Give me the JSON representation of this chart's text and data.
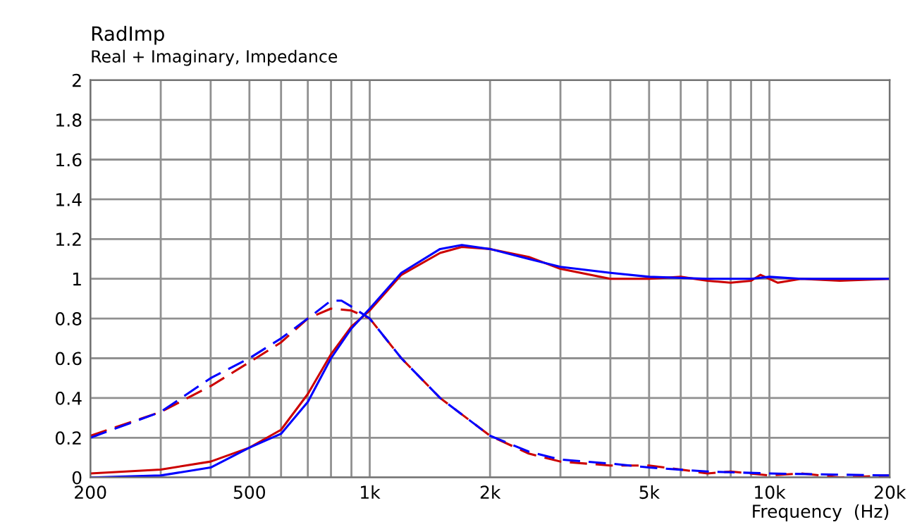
{
  "chart_data": {
    "type": "line",
    "title": "RadImp",
    "subtitle": "Real + Imaginary, Impedance",
    "xlabel": "Frequency  (Hz)",
    "log": "x",
    "grid": true,
    "marker": "none",
    "xlim": [
      200,
      20000
    ],
    "xticks": [
      200,
      500,
      {
        "value": 1000,
        "label": "1k"
      },
      {
        "value": 2000,
        "label": "2k"
      },
      {
        "value": 5000,
        "label": "5k"
      },
      {
        "value": 10000,
        "label": "10k"
      },
      {
        "value": 20000,
        "label": "20k"
      }
    ],
    "ylim": [
      0,
      2
    ],
    "yticks": [
      0,
      0.2,
      0.4,
      0.6,
      0.8,
      1,
      1.2,
      1.4,
      1.6,
      1.8,
      2
    ],
    "series": [
      {
        "color": "#cc0000",
        "line_style": "solid",
        "x": [
          200,
          300,
          400,
          500,
          600,
          700,
          800,
          900,
          1000,
          1200,
          1500,
          1700,
          2000,
          2500,
          3000,
          4000,
          5000,
          6000,
          7000,
          8000,
          9000,
          9500,
          10500,
          12000,
          15000,
          20000
        ],
        "values": [
          0.02,
          0.04,
          0.08,
          0.15,
          0.24,
          0.42,
          0.62,
          0.76,
          0.84,
          1.02,
          1.13,
          1.16,
          1.15,
          1.11,
          1.05,
          1.0,
          1.0,
          1.01,
          0.99,
          0.98,
          0.99,
          1.02,
          0.98,
          1.0,
          0.99,
          1.0
        ]
      },
      {
        "color": "#0000ff",
        "line_style": "solid",
        "x": [
          200,
          300,
          400,
          500,
          600,
          700,
          800,
          900,
          1000,
          1200,
          1500,
          1700,
          2000,
          2500,
          3000,
          4000,
          5000,
          7000,
          9000,
          10000,
          12000,
          20000
        ],
        "values": [
          0.0,
          0.01,
          0.05,
          0.15,
          0.22,
          0.38,
          0.6,
          0.75,
          0.85,
          1.03,
          1.15,
          1.17,
          1.15,
          1.1,
          1.06,
          1.03,
          1.01,
          1.0,
          1.0,
          1.01,
          1.0,
          1.0
        ]
      },
      {
        "color": "#cc0000",
        "line_style": "dashed",
        "x": [
          200,
          300,
          400,
          500,
          600,
          700,
          800,
          900,
          1000,
          1200,
          1500,
          2000,
          2500,
          3000,
          4000,
          5000,
          6000,
          7000,
          8000,
          10000,
          12000,
          15000,
          20000
        ],
        "values": [
          0.21,
          0.33,
          0.46,
          0.58,
          0.68,
          0.8,
          0.85,
          0.84,
          0.8,
          0.6,
          0.4,
          0.21,
          0.12,
          0.08,
          0.06,
          0.06,
          0.04,
          0.02,
          0.03,
          0.01,
          0.02,
          0.0,
          0.01
        ]
      },
      {
        "color": "#0000ff",
        "line_style": "dashed",
        "x": [
          200,
          300,
          400,
          500,
          600,
          700,
          800,
          850,
          900,
          1000,
          1200,
          1500,
          2000,
          2500,
          3000,
          4000,
          5000,
          7000,
          10000,
          20000
        ],
        "values": [
          0.2,
          0.33,
          0.5,
          0.6,
          0.7,
          0.8,
          0.89,
          0.89,
          0.86,
          0.8,
          0.6,
          0.4,
          0.21,
          0.13,
          0.09,
          0.07,
          0.05,
          0.03,
          0.02,
          0.01
        ]
      }
    ]
  }
}
